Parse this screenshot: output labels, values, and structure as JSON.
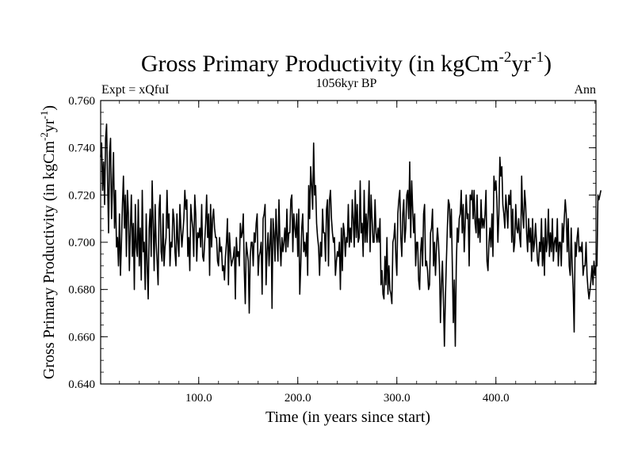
{
  "chart_data": {
    "type": "line",
    "title": "Gross Primary Productivity (in kgCm",
    "title_sup1": "-2",
    "title_mid": "yr",
    "title_sup2": "-1",
    "title_end": ")",
    "subtitle_left": "Expt = xQfuI",
    "subtitle_center": "1056kyr BP",
    "subtitle_right": "Ann",
    "xlabel": "Time (in years since start)",
    "ylabel": "Gross Primary Productivity (in kgCm",
    "ylabel_sup1": "-2",
    "ylabel_mid": "yr",
    "ylabel_sup2": "-1",
    "ylabel_end": ")",
    "xlim": [
      1,
      501
    ],
    "ylim": [
      0.64,
      0.76
    ],
    "xticks": [
      100,
      200,
      300,
      400
    ],
    "xtick_labels": [
      "100.0",
      "200.0",
      "300.0",
      "400.0"
    ],
    "yticks": [
      0.64,
      0.66,
      0.68,
      0.7,
      0.72,
      0.74,
      0.76
    ],
    "ytick_labels": [
      "0.640",
      "0.660",
      "0.680",
      "0.700",
      "0.720",
      "0.740",
      "0.760"
    ],
    "series": [
      {
        "name": "Gross Primary Productivity",
        "color": "#000000",
        "x_start": 1,
        "x_step": 1,
        "values": [
          0.736,
          0.742,
          0.722,
          0.734,
          0.716,
          0.744,
          0.75,
          0.726,
          0.704,
          0.738,
          0.744,
          0.71,
          0.724,
          0.738,
          0.706,
          0.722,
          0.698,
          0.702,
          0.69,
          0.712,
          0.686,
          0.7,
          0.716,
          0.728,
          0.706,
          0.72,
          0.694,
          0.722,
          0.712,
          0.688,
          0.706,
          0.72,
          0.694,
          0.708,
          0.68,
          0.716,
          0.698,
          0.694,
          0.718,
          0.69,
          0.706,
          0.684,
          0.722,
          0.696,
          0.7,
          0.68,
          0.712,
          0.69,
          0.676,
          0.706,
          0.714,
          0.694,
          0.726,
          0.708,
          0.688,
          0.716,
          0.7,
          0.692,
          0.682,
          0.714,
          0.72,
          0.696,
          0.692,
          0.712,
          0.69,
          0.698,
          0.702,
          0.722,
          0.706,
          0.712,
          0.69,
          0.7,
          0.698,
          0.714,
          0.71,
          0.696,
          0.69,
          0.712,
          0.7,
          0.694,
          0.716,
          0.706,
          0.698,
          0.704,
          0.71,
          0.722,
          0.714,
          0.718,
          0.694,
          0.702,
          0.688,
          0.716,
          0.71,
          0.706,
          0.694,
          0.72,
          0.712,
          0.692,
          0.704,
          0.702,
          0.706,
          0.698,
          0.716,
          0.694,
          0.692,
          0.7,
          0.708,
          0.72,
          0.702,
          0.712,
          0.686,
          0.716,
          0.698,
          0.71,
          0.714,
          0.706,
          0.702,
          0.702,
          0.692,
          0.69,
          0.702,
          0.696,
          0.698,
          0.688,
          0.69,
          0.684,
          0.694,
          0.7,
          0.71,
          0.682,
          0.704,
          0.696,
          0.69,
          0.692,
          0.694,
          0.698,
          0.676,
          0.702,
          0.694,
          0.696,
          0.69,
          0.708,
          0.702,
          0.704,
          0.712,
          0.688,
          0.674,
          0.7,
          0.696,
          0.692,
          0.67,
          0.694,
          0.7,
          0.7,
          0.69,
          0.704,
          0.7,
          0.708,
          0.712,
          0.686,
          0.694,
          0.696,
          0.7,
          0.678,
          0.71,
          0.712,
          0.716,
          0.682,
          0.696,
          0.704,
          0.69,
          0.7,
          0.71,
          0.672,
          0.71,
          0.704,
          0.692,
          0.714,
          0.702,
          0.692,
          0.718,
          0.7,
          0.69,
          0.702,
          0.696,
          0.7,
          0.706,
          0.696,
          0.714,
          0.698,
          0.704,
          0.704,
          0.718,
          0.72,
          0.696,
          0.712,
          0.706,
          0.702,
          0.712,
          0.694,
          0.714,
          0.678,
          0.69,
          0.706,
          0.712,
          0.696,
          0.7,
          0.694,
          0.704,
          0.686,
          0.724,
          0.71,
          0.732,
          0.724,
          0.714,
          0.742,
          0.72,
          0.724,
          0.708,
          0.702,
          0.698,
          0.686,
          0.7,
          0.694,
          0.714,
          0.704,
          0.704,
          0.692,
          0.714,
          0.718,
          0.69,
          0.718,
          0.722,
          0.71,
          0.704,
          0.7,
          0.702,
          0.686,
          0.692,
          0.696,
          0.694,
          0.7,
          0.68,
          0.706,
          0.688,
          0.708,
          0.704,
          0.694,
          0.702,
          0.7,
          0.716,
          0.698,
          0.706,
          0.7,
          0.718,
          0.71,
          0.698,
          0.722,
          0.702,
          0.716,
          0.7,
          0.702,
          0.726,
          0.704,
          0.708,
          0.694,
          0.722,
          0.7,
          0.712,
          0.7,
          0.712,
          0.726,
          0.696,
          0.72,
          0.71,
          0.7,
          0.7,
          0.718,
          0.704,
          0.7,
          0.706,
          0.7,
          0.71,
          0.682,
          0.688,
          0.678,
          0.676,
          0.694,
          0.682,
          0.702,
          0.678,
          0.69,
          0.68,
          0.678,
          0.674,
          0.7,
          0.702,
          0.708,
          0.694,
          0.686,
          0.712,
          0.718,
          0.722,
          0.702,
          0.694,
          0.712,
          0.718,
          0.7,
          0.706,
          0.72,
          0.722,
          0.71,
          0.734,
          0.702,
          0.726,
          0.714,
          0.704,
          0.712,
          0.69,
          0.7,
          0.7,
          0.684,
          0.68,
          0.696,
          0.702,
          0.69,
          0.712,
          0.716,
          0.69,
          0.692,
          0.688,
          0.68,
          0.682,
          0.704,
          0.706,
          0.714,
          0.69,
          0.7,
          0.686,
          0.698,
          0.706,
          0.7,
          0.69,
          0.666,
          0.682,
          0.692,
          0.676,
          0.656,
          0.676,
          0.692,
          0.706,
          0.718,
          0.716,
          0.702,
          0.714,
          0.69,
          0.666,
          0.684,
          0.656,
          0.69,
          0.706,
          0.7,
          0.71,
          0.712,
          0.722,
          0.704,
          0.716,
          0.696,
          0.708,
          0.72,
          0.71,
          0.712,
          0.69,
          0.72,
          0.718,
          0.722,
          0.71,
          0.722,
          0.708,
          0.704,
          0.72,
          0.702,
          0.71,
          0.7,
          0.718,
          0.706,
          0.71,
          0.706,
          0.712,
          0.722,
          0.692,
          0.688,
          0.7,
          0.706,
          0.698,
          0.712,
          0.694,
          0.728,
          0.722,
          0.726,
          0.718,
          0.7,
          0.712,
          0.736,
          0.728,
          0.732,
          0.716,
          0.712,
          0.706,
          0.72,
          0.714,
          0.706,
          0.72,
          0.716,
          0.722,
          0.7,
          0.714,
          0.696,
          0.7,
          0.716,
          0.706,
          0.704,
          0.71,
          0.702,
          0.698,
          0.728,
          0.712,
          0.706,
          0.722,
          0.716,
          0.704,
          0.696,
          0.71,
          0.7,
          0.706,
          0.692,
          0.71,
          0.696,
          0.7,
          0.708,
          0.7,
          0.692,
          0.69,
          0.7,
          0.696,
          0.71,
          0.69,
          0.702,
          0.686,
          0.71,
          0.696,
          0.7,
          0.714,
          0.694,
          0.704,
          0.696,
          0.71,
          0.692,
          0.7,
          0.702,
          0.696,
          0.71,
          0.69,
          0.7,
          0.7,
          0.69,
          0.708,
          0.7,
          0.71,
          0.718,
          0.712,
          0.696,
          0.71,
          0.69,
          0.686,
          0.706,
          0.69,
          0.68,
          0.662,
          0.7,
          0.694,
          0.702,
          0.706,
          0.696,
          0.698,
          0.696,
          0.7,
          0.686,
          0.69,
          0.69,
          0.7,
          0.686,
          0.68,
          0.676,
          0.68,
          0.684,
          0.69,
          0.682,
          0.692,
          0.686,
          0.69,
          0.69,
          0.72,
          0.718,
          0.72,
          0.722
        ]
      }
    ]
  }
}
